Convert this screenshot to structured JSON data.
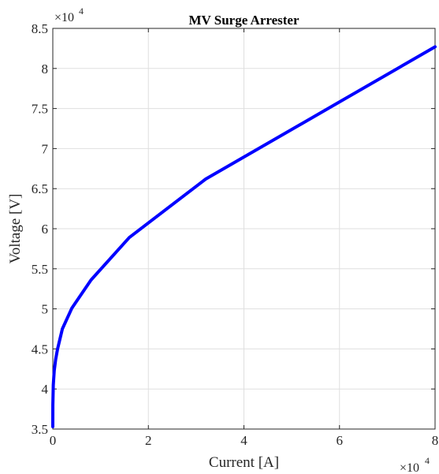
{
  "chart_data": {
    "type": "line",
    "title": "MV Surge Arrester",
    "xlabel": "Current [A]",
    "ylabel": "Voltage [V]",
    "x_exponent_label": {
      "base": "×10",
      "power": "4"
    },
    "y_exponent_label": {
      "base": "×10",
      "power": "4"
    },
    "xlim": [
      0,
      80000
    ],
    "ylim": [
      35000,
      85000
    ],
    "x_ticks": [
      0,
      20000,
      40000,
      60000,
      80000
    ],
    "x_tick_labels": [
      "0",
      "2",
      "4",
      "6",
      "8"
    ],
    "y_ticks": [
      35000,
      40000,
      45000,
      50000,
      55000,
      60000,
      65000,
      70000,
      75000,
      80000,
      85000
    ],
    "y_tick_labels": [
      "3.5",
      "4",
      "4.5",
      "5",
      "5.5",
      "6",
      "6.5",
      "7",
      "7.5",
      "8",
      "8.5"
    ],
    "grid": true,
    "series": [
      {
        "color": "#0000ff",
        "x": [
          0,
          10,
          100,
          300,
          600,
          1000,
          2000,
          4000,
          8000,
          16000,
          32000,
          80000
        ],
        "y": [
          35300,
          38000,
          40500,
          42300,
          43700,
          45000,
          47500,
          50100,
          53600,
          58900,
          66200,
          82700
        ]
      }
    ]
  }
}
